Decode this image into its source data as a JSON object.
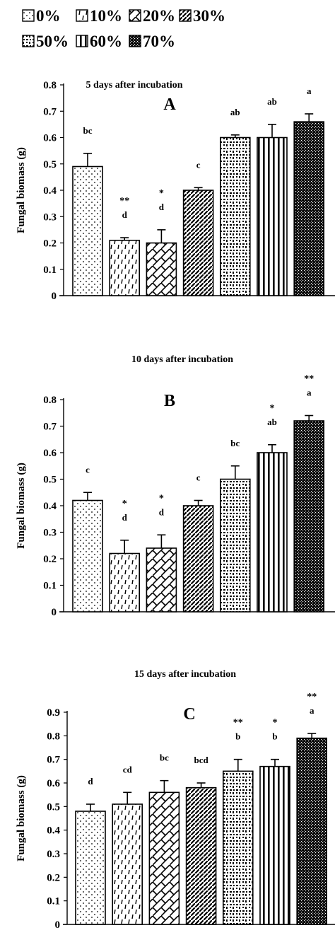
{
  "legend": [
    {
      "label": "0%",
      "pattern": "pat-dots"
    },
    {
      "label": "10%",
      "pattern": "pat-dash"
    },
    {
      "label": "20%",
      "pattern": "pat-cross"
    },
    {
      "label": "30%",
      "pattern": "pat-diag"
    },
    {
      "label": "50%",
      "pattern": "pat-blobs"
    },
    {
      "label": "60%",
      "pattern": "pat-vert"
    },
    {
      "label": "70%",
      "pattern": "pat-dense"
    }
  ],
  "chart_data": [
    {
      "type": "bar",
      "panel": "A",
      "title": "5 days after incubation",
      "ylabel": "Fungal biomass (g)",
      "xlabel": "",
      "categories": [
        "0%",
        "10%",
        "20%",
        "30%",
        "50%",
        "60%",
        "70%"
      ],
      "values": [
        0.49,
        0.21,
        0.2,
        0.4,
        0.6,
        0.6,
        0.66
      ],
      "errors": [
        0.05,
        0.01,
        0.05,
        0.01,
        0.01,
        0.05,
        0.03
      ],
      "letters": [
        "bc",
        "d",
        "d",
        "c",
        "ab",
        "ab",
        "a"
      ],
      "stars": [
        "",
        "**",
        "*",
        "",
        "",
        "",
        ""
      ],
      "ylim": [
        0,
        0.8
      ],
      "yticks": [
        "0",
        "0.1",
        "0.2",
        "0.3",
        "0.4",
        "0.5",
        "0.6",
        "0.7",
        "0.8"
      ],
      "grid": false
    },
    {
      "type": "bar",
      "panel": "B",
      "title": "10 days after incubation",
      "ylabel": "Fungal  biomass (g)",
      "xlabel": "",
      "categories": [
        "0%",
        "10%",
        "20%",
        "30%",
        "50%",
        "60%",
        "70%"
      ],
      "values": [
        0.42,
        0.22,
        0.24,
        0.4,
        0.5,
        0.6,
        0.72
      ],
      "errors": [
        0.03,
        0.05,
        0.05,
        0.02,
        0.05,
        0.03,
        0.02
      ],
      "letters": [
        "c",
        "d",
        "d",
        "c",
        "bc",
        "ab",
        "a"
      ],
      "stars": [
        "",
        "*",
        "*",
        "",
        "",
        "*",
        "**"
      ],
      "ylim": [
        0,
        0.8
      ],
      "yticks": [
        "0",
        "0.1",
        "0.2",
        "0.3",
        "0.4",
        "0.5",
        "0.6",
        "0.7",
        "0.8"
      ],
      "grid": false
    },
    {
      "type": "bar",
      "panel": "C",
      "title": "15 days after incubation",
      "ylabel": "Fungal biomass (g)",
      "xlabel": "",
      "categories": [
        "0%",
        "10%",
        "20%",
        "30%",
        "50%",
        "60%",
        "70%"
      ],
      "values": [
        0.48,
        0.51,
        0.56,
        0.58,
        0.65,
        0.67,
        0.79
      ],
      "errors": [
        0.03,
        0.05,
        0.05,
        0.02,
        0.05,
        0.03,
        0.02
      ],
      "letters": [
        "d",
        "cd",
        "bc",
        "bcd",
        "b",
        "b",
        "a"
      ],
      "stars": [
        "",
        "",
        "",
        "",
        "**",
        "*",
        "**"
      ],
      "ylim": [
        0,
        0.9
      ],
      "yticks": [
        "0",
        "0.1",
        "0.2",
        "0.3",
        "0.4",
        "0.5",
        "0.6",
        "0.7",
        "0.8",
        "0.9"
      ],
      "grid": false
    }
  ]
}
